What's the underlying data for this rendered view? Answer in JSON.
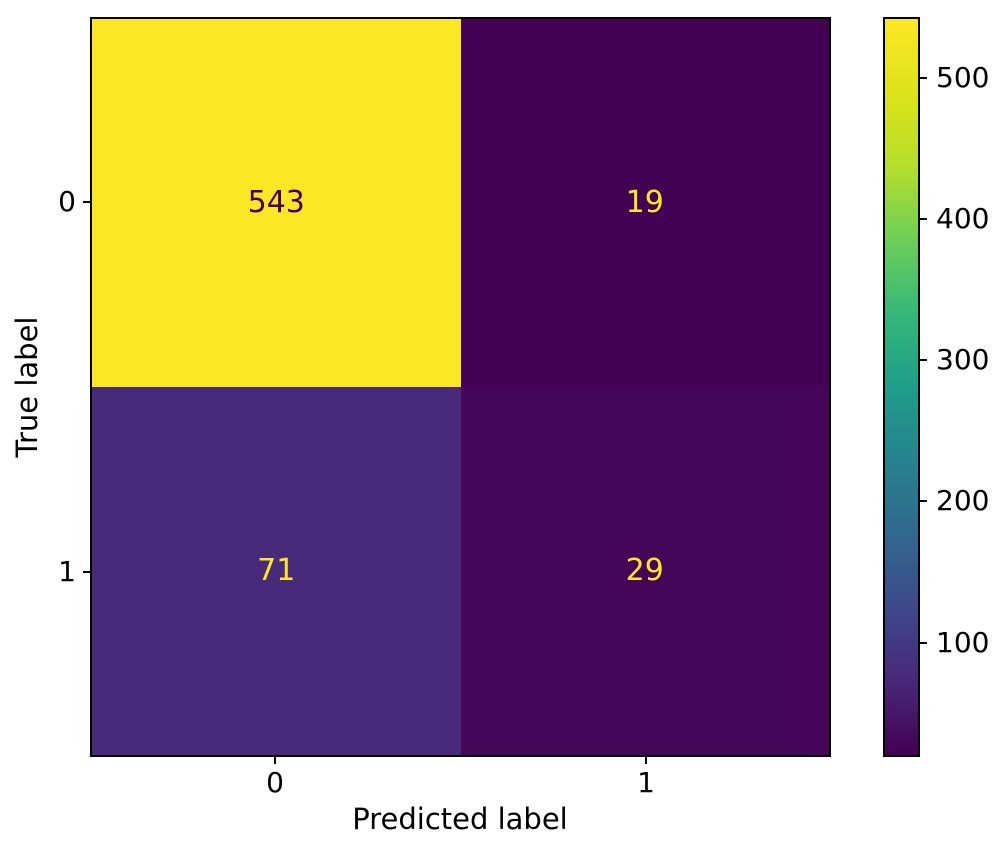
{
  "chart_data": {
    "type": "heatmap",
    "subtype": "confusion-matrix",
    "title": "",
    "xlabel": "Predicted label",
    "ylabel": "True label",
    "x_tick_labels": [
      "0",
      "1"
    ],
    "y_tick_labels": [
      "0",
      "1"
    ],
    "matrix": [
      [
        543,
        19
      ],
      [
        71,
        29
      ]
    ],
    "cell_text": [
      [
        "543",
        "19"
      ],
      [
        "71",
        "29"
      ]
    ],
    "vmin": 19,
    "vmax": 543,
    "colormap": "viridis",
    "colorbar_ticks": [
      500,
      400,
      300,
      200,
      100
    ],
    "cell_colors": [
      [
        "#fde725",
        "#440154"
      ],
      [
        "#472a7a",
        "#45065a"
      ]
    ],
    "cell_text_colors": [
      [
        "#440154",
        "#fde725"
      ],
      [
        "#fde725",
        "#fde725"
      ]
    ],
    "colormap_stops": [
      "#440154",
      "#482878",
      "#3e4989",
      "#31688e",
      "#26828e",
      "#1f9e89",
      "#35b779",
      "#6ece58",
      "#b5de2b",
      "#dde318",
      "#fde725"
    ],
    "legend": "none",
    "grid": false,
    "spine_color": "#000000",
    "background_color": "#ffffff"
  }
}
